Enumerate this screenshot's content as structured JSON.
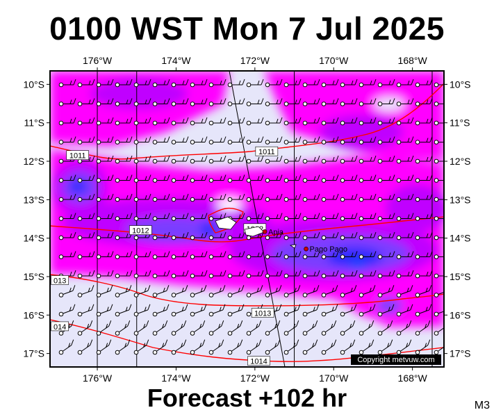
{
  "title": "0100 WST Mon 7 Jul 2025",
  "footer": "Forecast +102 hr",
  "model": "M3",
  "copyright": "Copyright metvuw.com",
  "map": {
    "lon_range": [
      -177.2,
      -167.2
    ],
    "lat_range": [
      -17.35,
      -9.65
    ],
    "lon_ticks": [
      {
        "value": -176,
        "label": "176°W"
      },
      {
        "value": -174,
        "label": "174°W"
      },
      {
        "value": -172,
        "label": "172°W"
      },
      {
        "value": -170,
        "label": "170°W"
      },
      {
        "value": -168,
        "label": "168°W"
      }
    ],
    "lat_ticks": [
      {
        "value": -10,
        "label": "10°S"
      },
      {
        "value": -11,
        "label": "11°S"
      },
      {
        "value": -12,
        "label": "12°S"
      },
      {
        "value": -13,
        "label": "13°S"
      },
      {
        "value": -14,
        "label": "14°S"
      },
      {
        "value": -15,
        "label": "15°S"
      },
      {
        "value": -16,
        "label": "16°S"
      },
      {
        "value": -17,
        "label": "17°S"
      }
    ],
    "colors": {
      "background": "#e6e6fa",
      "rain_light": "#ff00ff",
      "rain_moderate": "#c000ff",
      "rain_heavy": "#7a3cff",
      "rain_intense": "#2a2aff",
      "rain_core": "#1a4aff",
      "isobar": "#ff0000",
      "wind": "#000000",
      "place": "#cc0000"
    },
    "isobar_labels": [
      {
        "text": "1011",
        "lon": -176.5,
        "lat": -11.85
      },
      {
        "text": "1011",
        "lon": -171.7,
        "lat": -11.75
      },
      {
        "text": "1012",
        "lon": -174.9,
        "lat": -13.8
      },
      {
        "text": "1012",
        "lon": -172.0,
        "lat": -13.75
      },
      {
        "text": "013",
        "lon": -176.95,
        "lat": -15.1
      },
      {
        "text": "1013",
        "lon": -171.8,
        "lat": -15.95
      },
      {
        "text": "014",
        "lon": -176.95,
        "lat": -16.3
      },
      {
        "text": "1014",
        "lon": -171.9,
        "lat": -17.2
      }
    ],
    "places": [
      {
        "name": "Apia",
        "lon": -171.75,
        "lat": -13.83
      },
      {
        "name": "Pago Pago",
        "lon": -170.7,
        "lat": -14.28
      }
    ]
  }
}
